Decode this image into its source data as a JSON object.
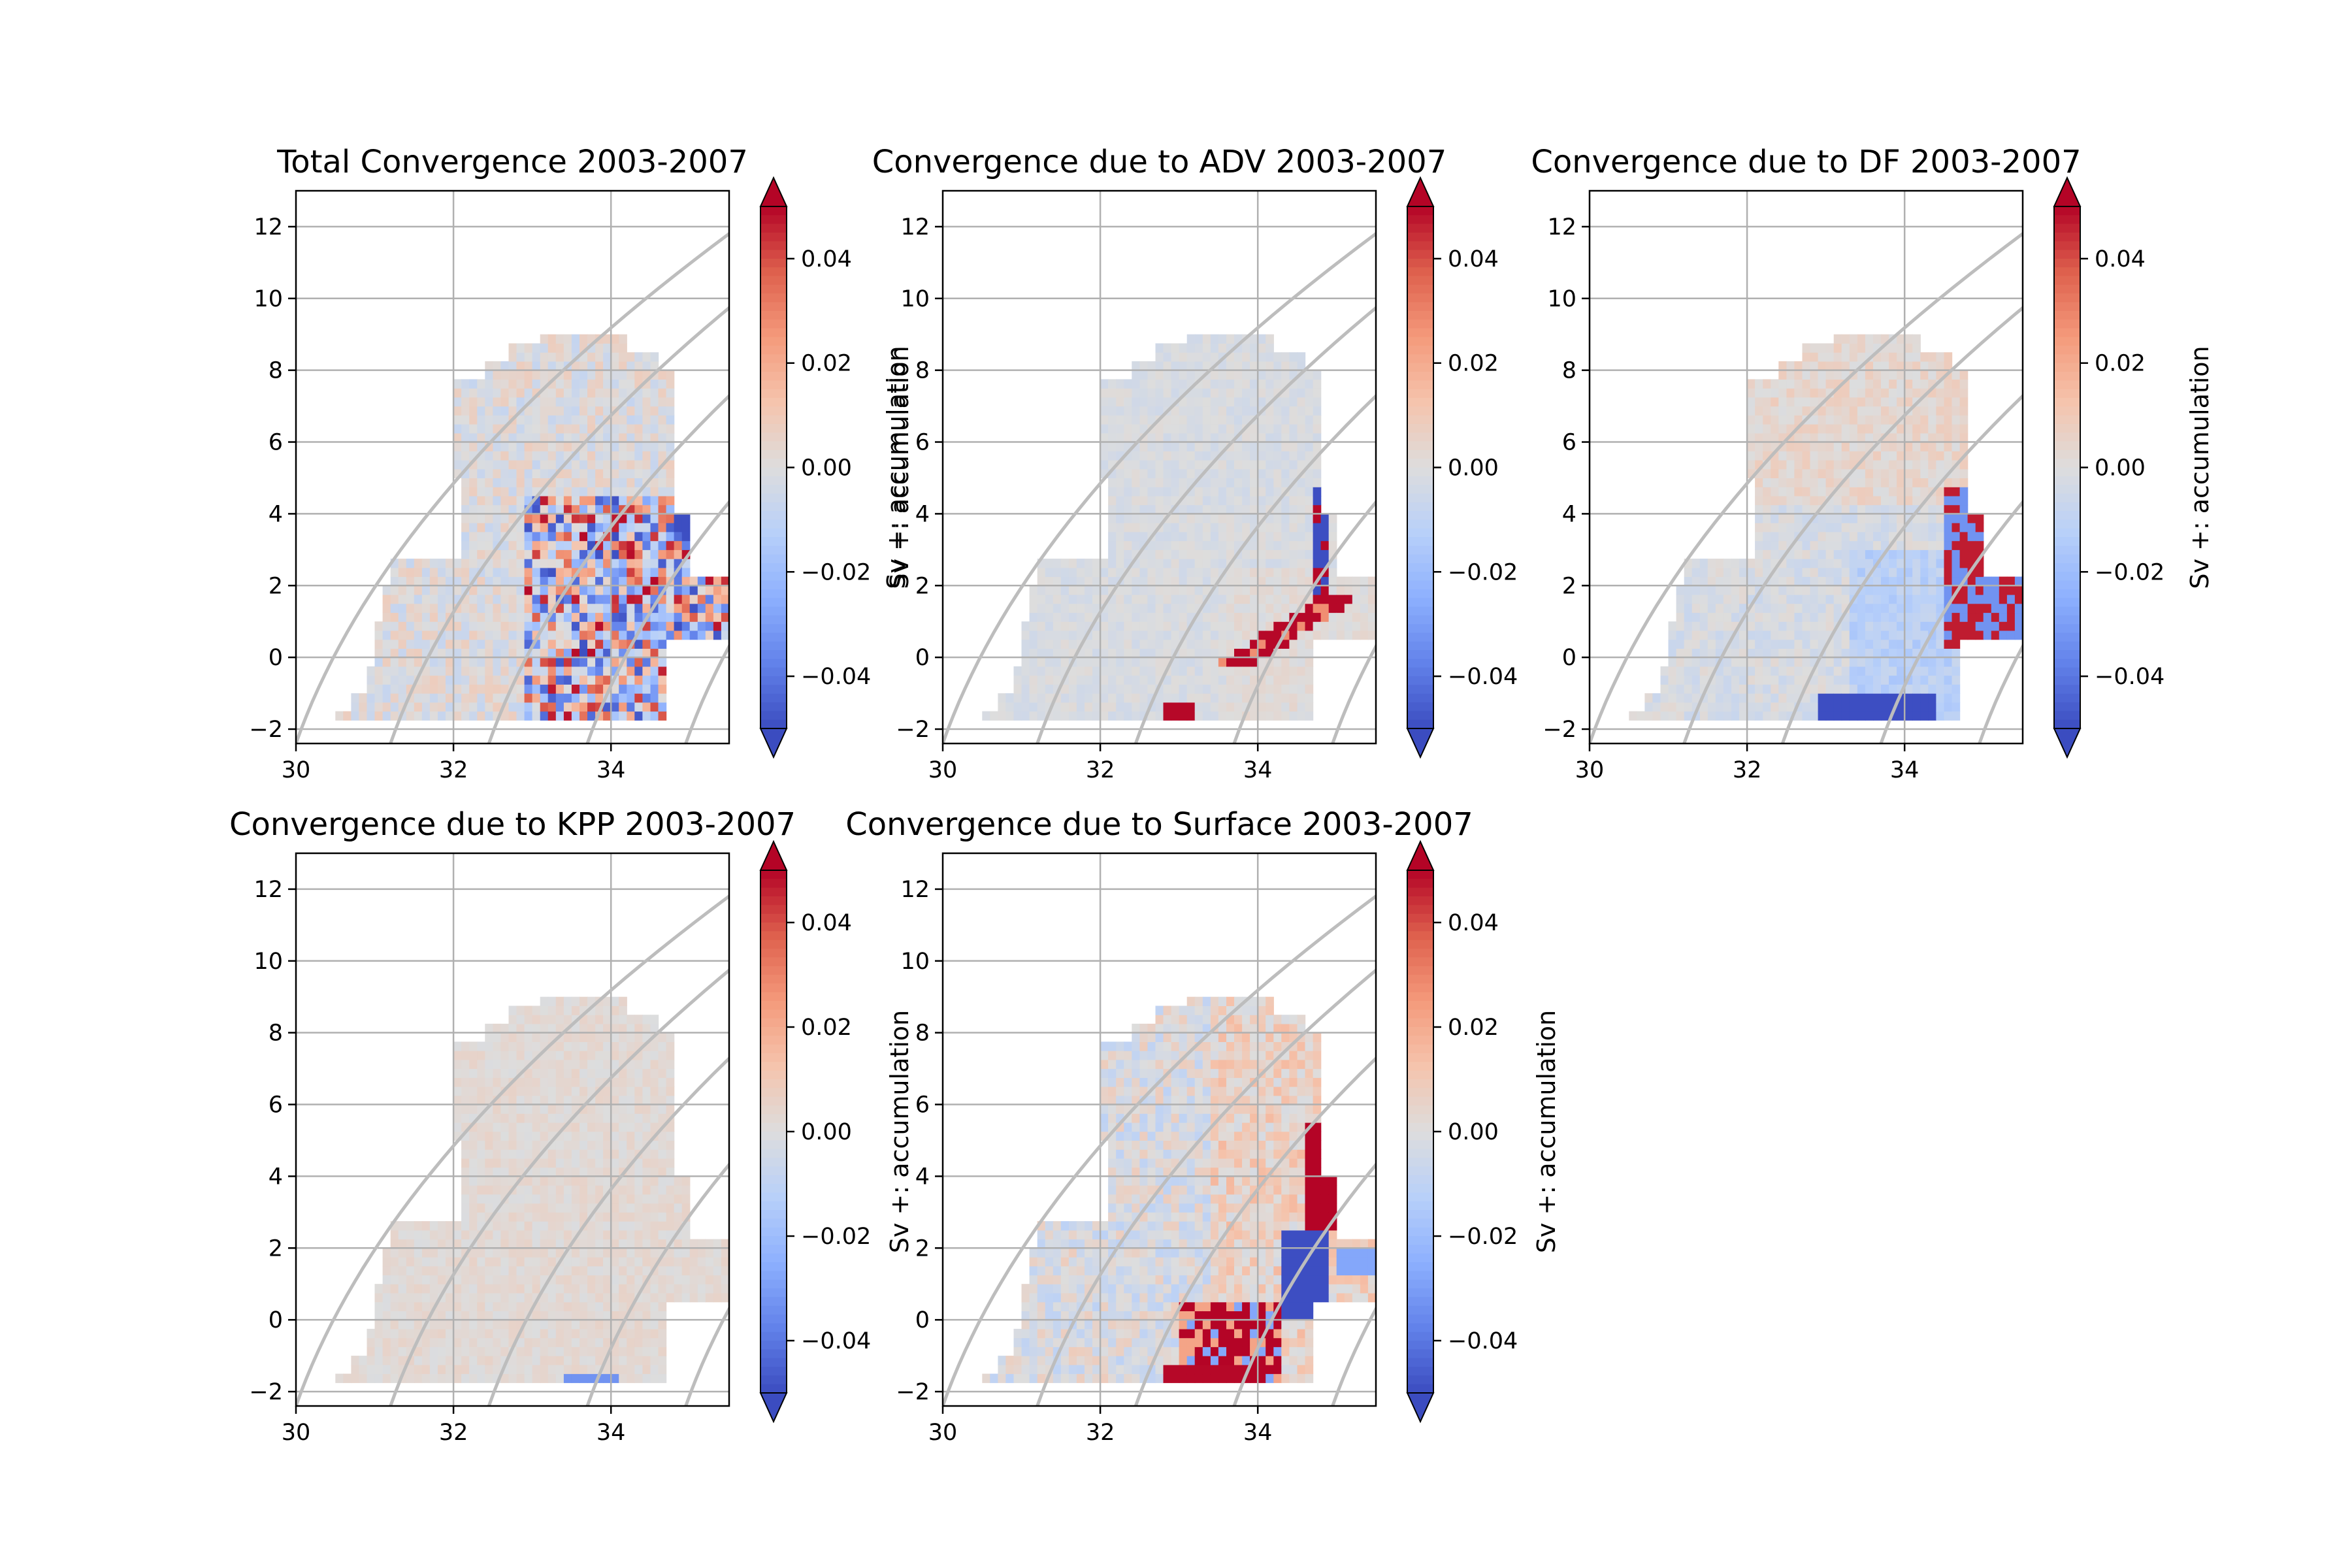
{
  "figure": {
    "colormap": "coolwarm",
    "land_color": "#dddddd",
    "grid_color": "#b0b0b0",
    "curve_color": "#bdbdbd"
  },
  "chart_data": [
    {
      "type": "heatmap",
      "title": "Total Convergence 2003-2007",
      "xlim": [
        30,
        35.5
      ],
      "ylim": [
        -2.4,
        13
      ],
      "xticks": [
        "30",
        "32",
        "34"
      ],
      "yticks": [
        "−2",
        "0",
        "2",
        "4",
        "6",
        "8",
        "10",
        "12"
      ],
      "grid": true,
      "color_range": [
        -0.05,
        0.05
      ],
      "colorbar": {
        "ticks": [
          "0.04",
          "0.02",
          "0.00",
          "−0.02",
          "−0.04"
        ],
        "label": "Sv +: accumulation",
        "extend": "both"
      },
      "pattern": "total"
    },
    {
      "type": "heatmap",
      "title": "Convergence due to ADV 2003-2007",
      "xlim": [
        30,
        35.5
      ],
      "ylim": [
        -2.4,
        13
      ],
      "xticks": [
        "30",
        "32",
        "34"
      ],
      "yticks": [
        "−2",
        "0",
        "2",
        "4",
        "6",
        "8",
        "10",
        "12"
      ],
      "grid": true,
      "color_range": [
        -0.05,
        0.05
      ],
      "colorbar": {
        "ticks": [
          "0.04",
          "0.02",
          "0.00",
          "−0.02",
          "−0.04"
        ],
        "label": "Sv +: accumulation",
        "extend": "both"
      },
      "pattern": "adv"
    },
    {
      "type": "heatmap",
      "title": "Convergence due to DF 2003-2007",
      "xlim": [
        30,
        35.5
      ],
      "ylim": [
        -2.4,
        13
      ],
      "xticks": [
        "30",
        "32",
        "34"
      ],
      "yticks": [
        "−2",
        "0",
        "2",
        "4",
        "6",
        "8",
        "10",
        "12"
      ],
      "grid": true,
      "color_range": [
        -0.05,
        0.05
      ],
      "colorbar": {
        "ticks": [
          "0.04",
          "0.02",
          "0.00",
          "−0.02",
          "−0.04"
        ],
        "label": "Sv +: accumulation",
        "extend": "both"
      },
      "pattern": "df"
    },
    {
      "type": "heatmap",
      "title": "Convergence due to KPP 2003-2007",
      "xlim": [
        30,
        35.5
      ],
      "ylim": [
        -2.4,
        13
      ],
      "xticks": [
        "30",
        "32",
        "34"
      ],
      "yticks": [
        "−2",
        "0",
        "2",
        "4",
        "6",
        "8",
        "10",
        "12"
      ],
      "grid": true,
      "color_range": [
        -0.05,
        0.05
      ],
      "colorbar": {
        "ticks": [
          "0.04",
          "0.02",
          "0.00",
          "−0.02",
          "−0.04"
        ],
        "label": "Sv +: accumulation",
        "extend": "both"
      },
      "pattern": "kpp"
    },
    {
      "type": "heatmap",
      "title": "Convergence due to Surface 2003-2007",
      "xlim": [
        30,
        35.5
      ],
      "ylim": [
        -2.4,
        13
      ],
      "xticks": [
        "30",
        "32",
        "34"
      ],
      "yticks": [
        "−2",
        "0",
        "2",
        "4",
        "6",
        "8",
        "10",
        "12"
      ],
      "grid": true,
      "color_range": [
        -0.05,
        0.05
      ],
      "colorbar": {
        "ticks": [
          "0.04",
          "0.02",
          "0.00",
          "−0.02",
          "−0.04"
        ],
        "label": "Sv +: accumulation",
        "extend": "both"
      },
      "pattern": "surface"
    }
  ]
}
